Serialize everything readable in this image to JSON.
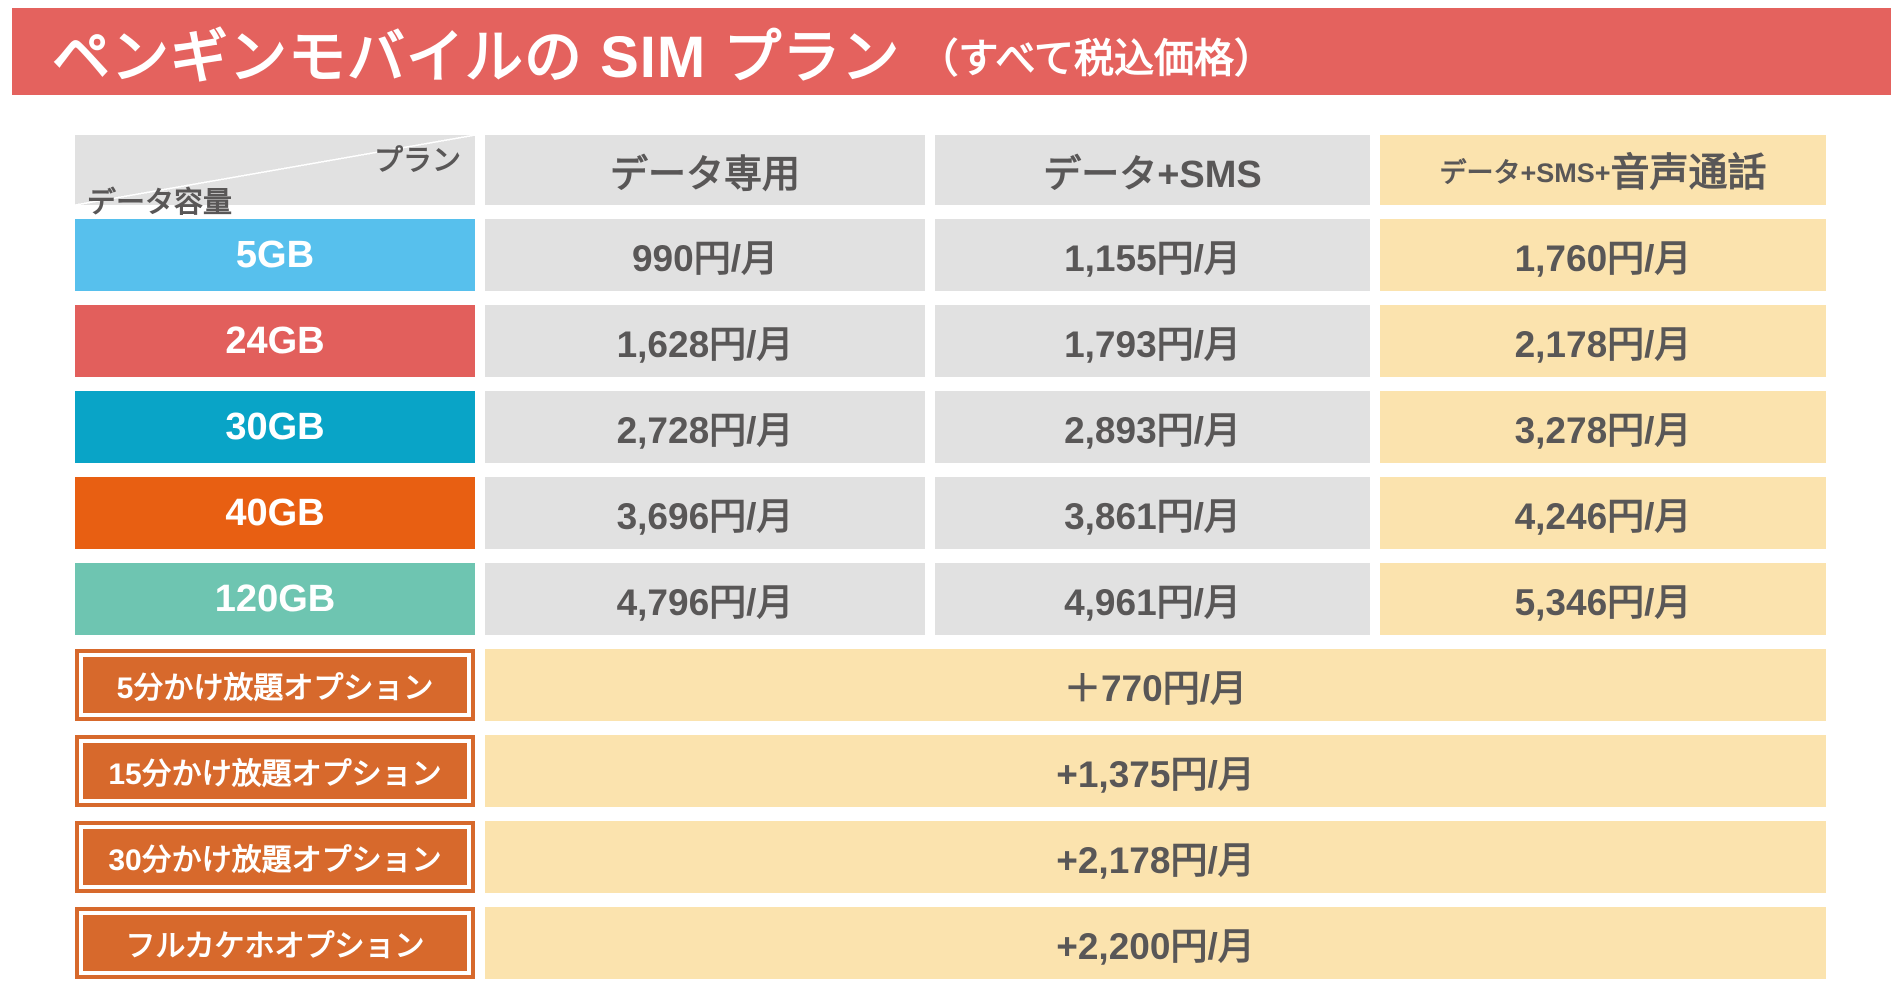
{
  "title": {
    "main": "ペンギンモバイルの SIM プラン",
    "note": "（すべて税込価格）"
  },
  "table": {
    "corner": {
      "top_right": "プラン",
      "bottom_left": "データ容量"
    },
    "columns": [
      "データ専用",
      "データ+SMS"
    ],
    "voice_header": {
      "prefix": "データ+SMS+",
      "emphasis": "音声通話"
    },
    "rows": [
      {
        "label": "5GB",
        "color": "#57c0ed",
        "prices": [
          "990円/月",
          "1,155円/月",
          "1,760円/月"
        ]
      },
      {
        "label": "24GB",
        "color": "#e25f5c",
        "prices": [
          "1,628円/月",
          "1,793円/月",
          "2,178円/月"
        ]
      },
      {
        "label": "30GB",
        "color": "#09a4c7",
        "prices": [
          "2,728円/月",
          "2,893円/月",
          "3,278円/月"
        ]
      },
      {
        "label": "40GB",
        "color": "#e85f12",
        "prices": [
          "3,696円/月",
          "3,861円/月",
          "4,246円/月"
        ]
      },
      {
        "label": "120GB",
        "color": "#6ec5b1",
        "prices": [
          "4,796円/月",
          "4,961円/月",
          "5,346円/月"
        ]
      }
    ],
    "options": [
      {
        "label": "5分かけ放題オプション",
        "price": "＋770円/月"
      },
      {
        "label": "15分かけ放題オプション",
        "price": "+1,375円/月"
      },
      {
        "label": "30分かけ放題オプション",
        "price": "+2,178円/月"
      },
      {
        "label": "フルカケホオプション",
        "price": "+2,200円/月"
      }
    ]
  },
  "colors": {
    "banner": "#e4625e",
    "header_bg": "#e1e1e1",
    "price_bg": "#e1e1e1",
    "voice_bg": "#fbe3ae",
    "option_box": "#d7692c",
    "text_dark": "#595757"
  },
  "chart_data": {
    "type": "table",
    "title": "ペンギンモバイルの SIM プラン（すべて税込価格）",
    "columns": [
      "データ容量",
      "データ専用",
      "データ+SMS",
      "データ+SMS+音声通話"
    ],
    "rows": [
      [
        "5GB",
        "990円/月",
        "1,155円/月",
        "1,760円/月"
      ],
      [
        "24GB",
        "1,628円/月",
        "1,793円/月",
        "2,178円/月"
      ],
      [
        "30GB",
        "2,728円/月",
        "2,893円/月",
        "3,278円/月"
      ],
      [
        "40GB",
        "3,696円/月",
        "3,861円/月",
        "4,246円/月"
      ],
      [
        "120GB",
        "4,796円/月",
        "4,961円/月",
        "5,346円/月"
      ]
    ],
    "options": [
      [
        "5分かけ放題オプション",
        "＋770円/月"
      ],
      [
        "15分かけ放題オプション",
        "+1,375円/月"
      ],
      [
        "30分かけ放題オプション",
        "+2,178円/月"
      ],
      [
        "フルカケホオプション",
        "+2,200円/月"
      ]
    ]
  }
}
